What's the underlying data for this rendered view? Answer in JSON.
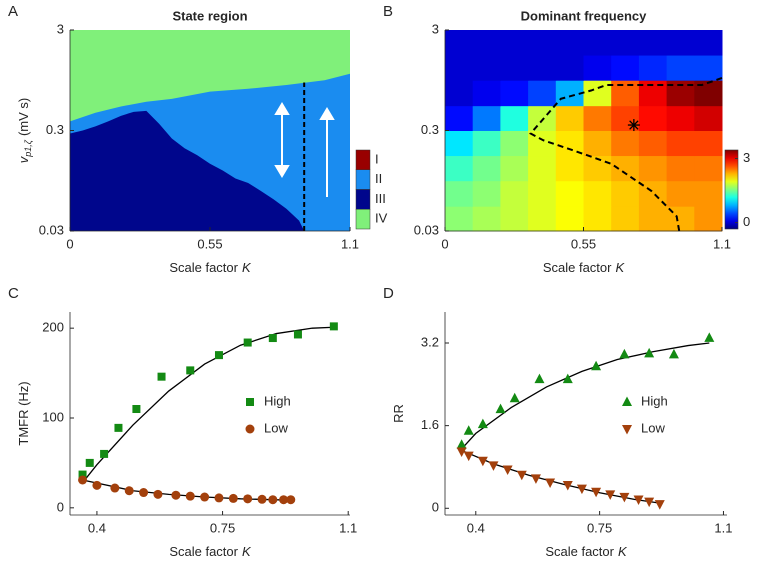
{
  "chart_data": [
    {
      "type": "region",
      "panel": "A",
      "title": "State region",
      "xlabel": "Scale factor",
      "xlabel_var": "K",
      "ylabel": "v",
      "ylabel_sub": "p1,ζ",
      "ylabel_unit": "(mV s)",
      "xlim": [
        0,
        1.1
      ],
      "ylim": [
        0.03,
        3
      ],
      "xticks": [
        0,
        0.55,
        1.1
      ],
      "yticks": [
        0.03,
        0.3,
        3
      ],
      "log_y": true,
      "series": [
        {
          "name": "I",
          "color": "#990000",
          "fill": "cell",
          "x": [
            1.06,
            1.09
          ],
          "y": [
            2.75,
            3
          ]
        },
        {
          "name": "II",
          "color": "#1a8cf0",
          "fill": "all"
        },
        {
          "name": "III",
          "color": "#00068c",
          "fill": "below",
          "x": [
            0,
            0.05,
            0.1,
            0.15,
            0.2,
            0.25,
            0.3,
            0.35,
            0.4,
            0.45,
            0.5,
            0.55,
            0.6,
            0.65,
            0.7,
            0.75,
            0.8,
            0.85,
            0.9,
            0.92
          ],
          "y": [
            0.28,
            0.3,
            0.33,
            0.37,
            0.42,
            0.46,
            0.47,
            0.35,
            0.25,
            0.2,
            0.17,
            0.14,
            0.12,
            0.1,
            0.09,
            0.075,
            0.062,
            0.05,
            0.038,
            0.03
          ]
        },
        {
          "name": "IV",
          "color": "#80f07a",
          "fill": "above",
          "x": [
            0,
            0.1,
            0.2,
            0.3,
            0.4,
            0.55,
            0.7,
            0.85,
            1.0,
            1.1
          ],
          "y": [
            0.37,
            0.45,
            0.52,
            0.58,
            0.62,
            0.73,
            0.78,
            0.85,
            0.95,
            1.1
          ]
        }
      ],
      "dashed_x": 0.92,
      "dashed_y": [
        0.03,
        0.9
      ]
    },
    {
      "type": "heatmap",
      "panel": "B",
      "title": "Dominant frequency",
      "xlabel": "Scale factor",
      "xlabel_var": "K",
      "xlim": [
        0,
        1.1
      ],
      "ylim": [
        0.03,
        3
      ],
      "xticks": [
        0,
        0.55,
        1.1
      ],
      "yticks": [
        0.03,
        0.3,
        3
      ],
      "log_y": true,
      "colormap": "jet",
      "clim": [
        -0.3,
        3.4
      ],
      "colorbar_ticks": [
        0,
        3
      ],
      "x_edges": [
        0,
        0.11,
        0.22,
        0.33,
        0.44,
        0.55,
        0.66,
        0.77,
        0.88,
        0.99,
        1.1
      ],
      "y_edges": [
        0.03,
        0.053,
        0.095,
        0.169,
        0.3,
        0.53,
        0.95,
        1.69,
        3
      ],
      "z": [
        [
          1.6,
          1.7,
          1.8,
          1.9,
          2.0,
          2.1,
          2.2,
          2.3,
          2.3,
          2.4
        ],
        [
          1.5,
          1.6,
          1.8,
          1.9,
          2.0,
          2.1,
          2.2,
          2.3,
          2.4,
          2.4
        ],
        [
          1.3,
          1.5,
          1.7,
          1.9,
          2.1,
          2.2,
          2.3,
          2.4,
          2.5,
          2.5
        ],
        [
          1.0,
          1.3,
          1.6,
          1.9,
          2.1,
          2.3,
          2.5,
          2.6,
          2.7,
          2.7
        ],
        [
          0.2,
          0.6,
          1.2,
          1.8,
          2.2,
          2.5,
          2.7,
          2.9,
          3.0,
          3.1
        ],
        [
          0,
          0.1,
          0.2,
          0.4,
          0.8,
          1.9,
          2.6,
          3.0,
          3.3,
          3.4
        ],
        [
          0,
          0,
          0,
          0,
          0,
          0.1,
          0.2,
          0.3,
          0.4,
          0.4
        ],
        [
          0,
          0,
          0,
          0,
          0,
          0,
          0,
          0,
          0,
          0
        ]
      ],
      "contour": {
        "x": [
          0.93,
          0.92,
          0.82,
          0.66,
          0.51,
          0.39,
          0.34,
          0.46,
          0.58,
          0.64,
          1.02,
          1.1
        ],
        "y": [
          0.03,
          0.042,
          0.075,
          0.14,
          0.19,
          0.24,
          0.28,
          0.62,
          0.75,
          0.85,
          0.85,
          1.0
        ]
      },
      "marker": {
        "x": 0.75,
        "y": 0.34
      }
    },
    {
      "type": "scatter",
      "panel": "C",
      "xlabel": "Scale factor",
      "xlabel_var": "K",
      "ylabel": "TMFR (Hz)",
      "xlim": [
        0.325,
        1.105
      ],
      "ylim": [
        -8,
        218
      ],
      "xticks": [
        0.4,
        0.75,
        1.1
      ],
      "yticks": [
        0,
        100,
        200
      ],
      "legend": "right",
      "series": [
        {
          "name": "High",
          "color": "#138a13",
          "marker": "square",
          "x": [
            0.36,
            0.38,
            0.42,
            0.46,
            0.51,
            0.58,
            0.66,
            0.74,
            0.82,
            0.89,
            0.96,
            1.06
          ],
          "y": [
            37,
            50,
            60,
            89,
            110,
            146,
            153,
            170,
            184,
            189,
            193,
            202
          ]
        },
        {
          "name": "Low",
          "color": "#a3400c",
          "marker": "circle",
          "x": [
            0.36,
            0.4,
            0.45,
            0.49,
            0.53,
            0.57,
            0.62,
            0.66,
            0.7,
            0.74,
            0.78,
            0.82,
            0.86,
            0.89,
            0.92,
            0.94
          ],
          "y": [
            31,
            25,
            22,
            19,
            17,
            15,
            14,
            13,
            12,
            11,
            10.5,
            10,
            9.5,
            9,
            9,
            9
          ]
        }
      ],
      "fits": [
        {
          "color": "#000000",
          "x": [
            0.36,
            0.4,
            0.5,
            0.6,
            0.7,
            0.8,
            0.9,
            1.0,
            1.06
          ],
          "y": [
            28,
            48,
            92,
            130,
            160,
            181,
            194,
            200,
            201
          ]
        },
        {
          "color": "#000000",
          "x": [
            0.36,
            0.5,
            0.6,
            0.7,
            0.8,
            0.94
          ],
          "y": [
            31,
            19,
            15,
            12,
            10,
            8.5
          ]
        }
      ]
    },
    {
      "type": "scatter",
      "panel": "D",
      "xlabel": "Scale factor",
      "xlabel_var": "K",
      "ylabel": "RR",
      "xlim": [
        0.313,
        1.11
      ],
      "ylim": [
        -0.13,
        3.8
      ],
      "xticks": [
        0.4,
        0.75,
        1.1
      ],
      "yticks": [
        0,
        1.6,
        3.2
      ],
      "legend": "right",
      "series": [
        {
          "name": "High",
          "color": "#138a13",
          "marker": "triangle-up",
          "x": [
            0.36,
            0.38,
            0.42,
            0.47,
            0.51,
            0.58,
            0.66,
            0.74,
            0.82,
            0.89,
            0.96,
            1.06
          ],
          "y": [
            1.23,
            1.5,
            1.63,
            1.92,
            2.13,
            2.5,
            2.5,
            2.75,
            2.98,
            3.0,
            2.98,
            3.3
          ]
        },
        {
          "name": "Low",
          "color": "#a3400c",
          "marker": "triangle-down",
          "x": [
            0.36,
            0.38,
            0.42,
            0.45,
            0.49,
            0.53,
            0.57,
            0.61,
            0.66,
            0.7,
            0.74,
            0.78,
            0.82,
            0.86,
            0.89,
            0.92
          ],
          "y": [
            1.1,
            1.02,
            0.92,
            0.83,
            0.75,
            0.65,
            0.58,
            0.5,
            0.45,
            0.38,
            0.32,
            0.27,
            0.22,
            0.17,
            0.13,
            0.08
          ]
        }
      ],
      "fits": [
        {
          "color": "#000000",
          "x": [
            0.36,
            0.4,
            0.5,
            0.6,
            0.7,
            0.8,
            0.9,
            1.0,
            1.06
          ],
          "y": [
            1.15,
            1.45,
            1.95,
            2.35,
            2.65,
            2.88,
            3.03,
            3.15,
            3.2
          ]
        },
        {
          "color": "#000000",
          "x": [
            0.36,
            0.45,
            0.55,
            0.65,
            0.75,
            0.85,
            0.92
          ],
          "y": [
            1.12,
            0.86,
            0.64,
            0.46,
            0.3,
            0.17,
            0.1
          ]
        }
      ]
    }
  ]
}
